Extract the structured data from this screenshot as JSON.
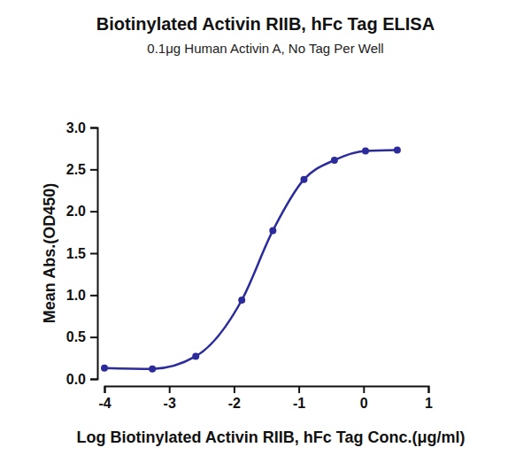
{
  "chart_data": {
    "type": "line",
    "title": "Biotinylated Activin RIIB, hFc Tag ELISA",
    "subtitle": "0.1μg Human Activin A, No Tag Per Well",
    "x_label": "Log Biotinylated Activin RIIB, hFc Tag Conc.(μg/ml)",
    "y_label": "Mean Abs.(OD450)",
    "x": [
      -4,
      -3.26,
      -2.59,
      -1.88,
      -1.4,
      -0.92,
      -0.45,
      0.03,
      0.52
    ],
    "values": [
      0.13,
      0.12,
      0.27,
      0.94,
      1.77,
      2.38,
      2.61,
      2.72,
      2.73
    ],
    "color": "#2b2b9b",
    "marker": "circle",
    "line_style": "solid",
    "xlim": [
      -4,
      1
    ],
    "xticks": [
      -4,
      -3,
      -2,
      -1,
      0,
      1
    ],
    "ylim": [
      0,
      3
    ],
    "yticks": [
      {
        "value": 0,
        "label": "0.0"
      },
      0.5,
      {
        "value": 1,
        "label": "1.0"
      },
      1.5,
      {
        "value": 2,
        "label": "2.0"
      },
      2.5,
      {
        "value": 3,
        "label": "3.0"
      }
    ],
    "grid": false
  }
}
